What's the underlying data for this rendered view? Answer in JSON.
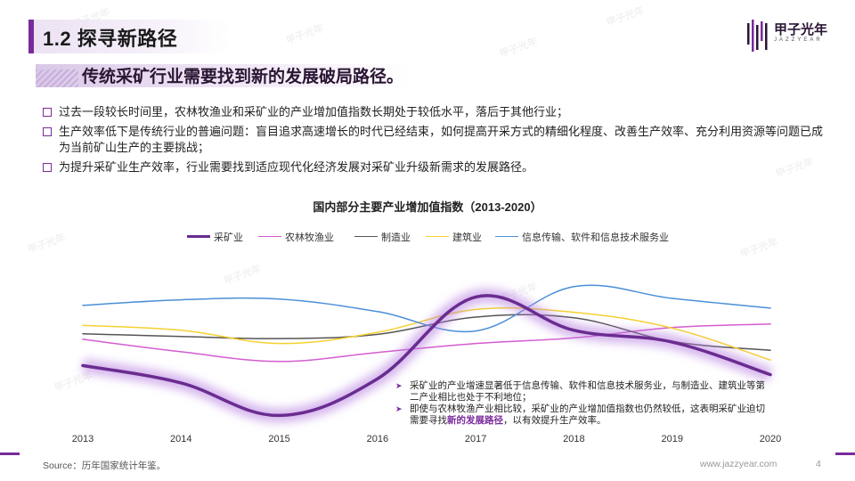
{
  "header": {
    "section_title": "1.2 探寻新路径",
    "subtitle": "传统采矿行业需要找到新的发展破局路径。",
    "logo_text": "甲子光年",
    "logo_sub": "JAZZYEAR",
    "watermark": "甲子光年"
  },
  "bullets": [
    "过去一段较长时间里，农林牧渔业和采矿业的产业增加值指数长期处于较低水平，落后于其他行业；",
    "生产效率低下是传统行业的普遍问题：盲目追求高速增长的时代已经结束，如何提高开采方式的精细化程度、改善生产效率、充分利用资源等问题已成为当前矿山生产的主要挑战；",
    "为提升采矿业生产效率，行业需要找到适应现代化经济发展对采矿业升级新需求的发展路径。"
  ],
  "chart_data": {
    "type": "line",
    "title": "国内部分主要产业增加值指数（2013-2020）",
    "x": [
      "2013",
      "2014",
      "2015",
      "2016",
      "2017",
      "2018",
      "2019",
      "2020"
    ],
    "yaxis_shown": false,
    "legend_position": "top",
    "series": [
      {
        "name": "采矿业",
        "color": "#6a2c91",
        "emphasis": true,
        "values": [
          106.4,
          103.9,
          99.2,
          104.5,
          116.3,
          111.5,
          109.8,
          105.1
        ]
      },
      {
        "name": "农林牧渔业",
        "color": "#d45cd0",
        "values": [
          110.2,
          108.4,
          107.0,
          108.3,
          109.6,
          110.4,
          111.9,
          112.4
        ]
      },
      {
        "name": "制造业",
        "color": "#555555",
        "values": [
          111.0,
          110.6,
          110.3,
          110.9,
          113.4,
          113.3,
          109.9,
          108.6
        ]
      },
      {
        "name": "建筑业",
        "color": "#f5d130",
        "values": [
          112.2,
          111.5,
          109.6,
          111.2,
          114.5,
          114.1,
          111.8,
          107.2
        ]
      },
      {
        "name": "信息传输、软件和信息技术服务业",
        "color": "#4a8fd8",
        "values": [
          115.1,
          115.9,
          116.0,
          114.2,
          111.4,
          117.8,
          116.1,
          114.7
        ]
      }
    ],
    "annotations": [
      "采矿业的产业增速显著低于信息传输、软件和信息技术服务业，与制造业、建筑业等第二产业相比也处于不利地位；",
      "即使与农林牧渔产业相比较，采矿业的产业增加值指数也仍然较低，这表明采矿业迫切需要寻找新的发展路径，以有效提升生产效率。"
    ],
    "annotation_highlight": "新的发展路径"
  },
  "footer": {
    "source": "Source：历年国家统计年鉴。",
    "site": "www.jazzyear.com",
    "page": "4"
  }
}
